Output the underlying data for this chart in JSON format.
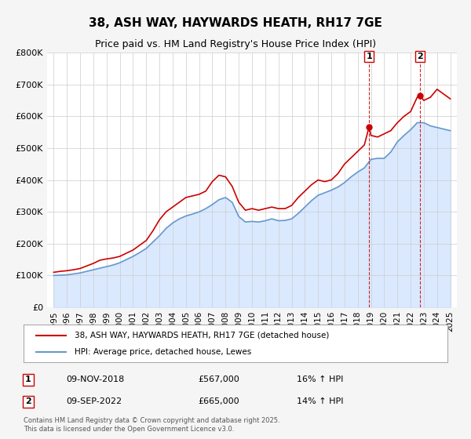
{
  "title": "38, ASH WAY, HAYWARDS HEATH, RH17 7GE",
  "subtitle": "Price paid vs. HM Land Registry's House Price Index (HPI)",
  "ylabel_left": "",
  "xlabel": "",
  "legend_label_red": "38, ASH WAY, HAYWARDS HEATH, RH17 7GE (detached house)",
  "legend_label_blue": "HPI: Average price, detached house, Lewes",
  "marker1_date": "09-NOV-2018",
  "marker1_price": "£567,000",
  "marker1_hpi": "16% ↑ HPI",
  "marker1_x": 2018.86,
  "marker1_y": 567000,
  "marker2_date": "09-SEP-2022",
  "marker2_price": "£665,000",
  "marker2_hpi": "14% ↑ HPI",
  "marker2_x": 2022.69,
  "marker2_y": 665000,
  "footer": "Contains HM Land Registry data © Crown copyright and database right 2025.\nThis data is licensed under the Open Government Licence v3.0.",
  "ylim": [
    0,
    800000
  ],
  "xlim": [
    1994.5,
    2025.5
  ],
  "yticks": [
    0,
    100000,
    200000,
    300000,
    400000,
    500000,
    600000,
    700000,
    800000
  ],
  "ytick_labels": [
    "£0",
    "£100K",
    "£200K",
    "£300K",
    "£400K",
    "£500K",
    "£600K",
    "£700K",
    "£800K"
  ],
  "xticks": [
    1995,
    1996,
    1997,
    1998,
    1999,
    2000,
    2001,
    2002,
    2003,
    2004,
    2005,
    2006,
    2007,
    2008,
    2009,
    2010,
    2011,
    2012,
    2013,
    2014,
    2015,
    2016,
    2017,
    2018,
    2019,
    2020,
    2021,
    2022,
    2023,
    2024,
    2025
  ],
  "red_color": "#cc0000",
  "blue_color": "#6699cc",
  "blue_fill_color": "#cce0ff",
  "vline_color": "#cc0000",
  "background_color": "#f5f5f5",
  "plot_bg_color": "#ffffff",
  "grid_color": "#cccccc",
  "red_x": [
    1995.0,
    1995.5,
    1996.0,
    1996.5,
    1997.0,
    1997.5,
    1998.0,
    1998.5,
    1999.0,
    1999.5,
    2000.0,
    2000.5,
    2001.0,
    2001.5,
    2002.0,
    2002.5,
    2003.0,
    2003.5,
    2004.0,
    2004.5,
    2005.0,
    2005.5,
    2006.0,
    2006.5,
    2007.0,
    2007.5,
    2008.0,
    2008.5,
    2009.0,
    2009.5,
    2010.0,
    2010.5,
    2011.0,
    2011.5,
    2012.0,
    2012.5,
    2013.0,
    2013.5,
    2014.0,
    2014.5,
    2015.0,
    2015.5,
    2016.0,
    2016.5,
    2017.0,
    2017.5,
    2018.0,
    2018.5,
    2018.86,
    2019.0,
    2019.5,
    2020.0,
    2020.5,
    2021.0,
    2021.5,
    2022.0,
    2022.5,
    2022.69,
    2023.0,
    2023.5,
    2024.0,
    2024.5,
    2025.0
  ],
  "red_y": [
    110000,
    113000,
    115000,
    118000,
    122000,
    130000,
    138000,
    148000,
    152000,
    155000,
    160000,
    170000,
    180000,
    195000,
    210000,
    240000,
    275000,
    300000,
    315000,
    330000,
    345000,
    350000,
    355000,
    365000,
    395000,
    415000,
    410000,
    380000,
    330000,
    305000,
    310000,
    305000,
    310000,
    315000,
    310000,
    310000,
    320000,
    345000,
    365000,
    385000,
    400000,
    395000,
    400000,
    420000,
    450000,
    470000,
    490000,
    510000,
    567000,
    540000,
    535000,
    545000,
    555000,
    580000,
    600000,
    615000,
    660000,
    665000,
    650000,
    660000,
    685000,
    670000,
    655000
  ],
  "blue_x": [
    1995.0,
    1995.5,
    1996.0,
    1996.5,
    1997.0,
    1997.5,
    1998.0,
    1998.5,
    1999.0,
    1999.5,
    2000.0,
    2000.5,
    2001.0,
    2001.5,
    2002.0,
    2002.5,
    2003.0,
    2003.5,
    2004.0,
    2004.5,
    2005.0,
    2005.5,
    2006.0,
    2006.5,
    2007.0,
    2007.5,
    2008.0,
    2008.5,
    2009.0,
    2009.5,
    2010.0,
    2010.5,
    2011.0,
    2011.5,
    2012.0,
    2012.5,
    2013.0,
    2013.5,
    2014.0,
    2014.5,
    2015.0,
    2015.5,
    2016.0,
    2016.5,
    2017.0,
    2017.5,
    2018.0,
    2018.5,
    2019.0,
    2019.5,
    2020.0,
    2020.5,
    2021.0,
    2021.5,
    2022.0,
    2022.5,
    2023.0,
    2023.5,
    2024.0,
    2024.5,
    2025.0
  ],
  "blue_y": [
    100000,
    101000,
    102000,
    105000,
    108000,
    113000,
    118000,
    123000,
    128000,
    133000,
    140000,
    150000,
    160000,
    172000,
    185000,
    205000,
    225000,
    248000,
    265000,
    278000,
    287000,
    293000,
    300000,
    310000,
    323000,
    338000,
    345000,
    330000,
    285000,
    268000,
    270000,
    268000,
    272000,
    278000,
    272000,
    273000,
    278000,
    295000,
    315000,
    335000,
    352000,
    360000,
    368000,
    378000,
    392000,
    410000,
    425000,
    438000,
    465000,
    468000,
    468000,
    488000,
    520000,
    540000,
    558000,
    580000,
    580000,
    570000,
    565000,
    560000,
    555000
  ]
}
